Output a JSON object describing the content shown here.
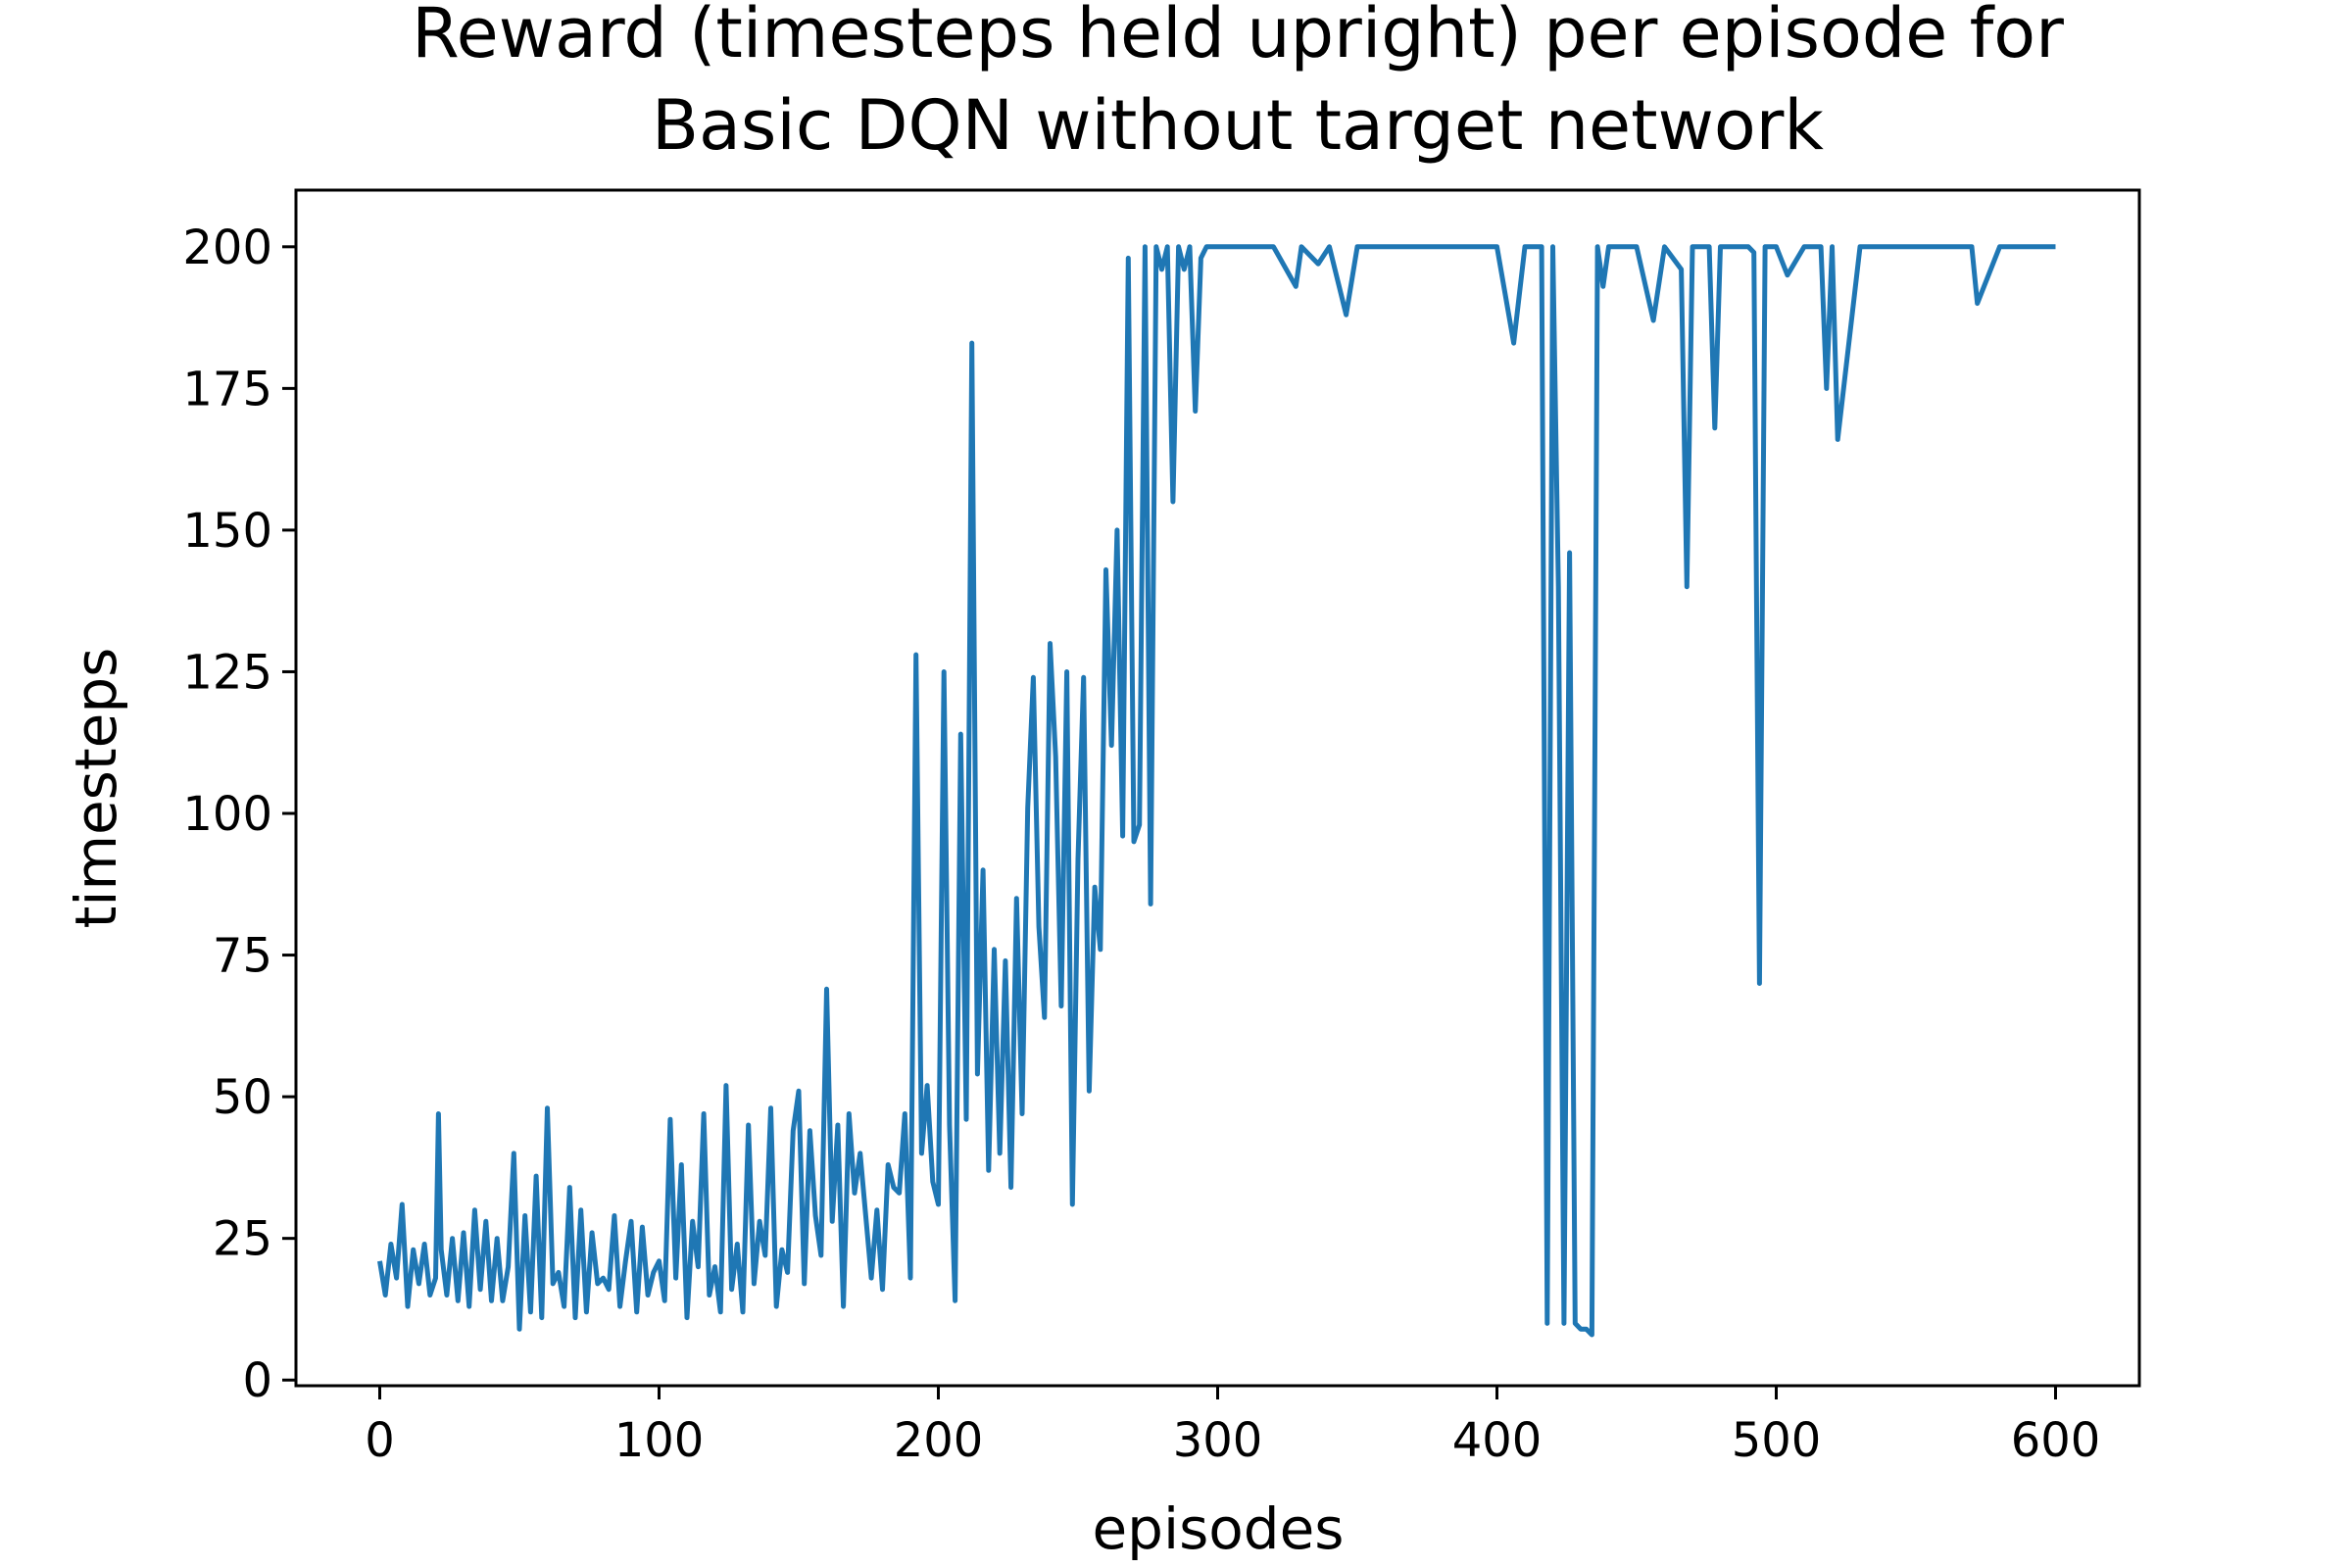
{
  "chart_data": {
    "type": "line",
    "title": [
      "Reward (timesteps held upright) per episode for",
      "Basic DQN without target network"
    ],
    "xlabel": "episodes",
    "ylabel": "timesteps",
    "xlim": [
      -30,
      630
    ],
    "ylim": [
      -1,
      210
    ],
    "xticks": [
      0,
      100,
      200,
      300,
      400,
      500,
      600
    ],
    "yticks": [
      0,
      25,
      50,
      75,
      100,
      125,
      150,
      175,
      200
    ],
    "grid": false,
    "legend": false,
    "colors": {
      "series": "#1f77b4"
    },
    "series": [
      {
        "x": [
          0,
          2,
          4,
          6,
          8,
          10,
          12,
          14,
          16,
          18,
          20,
          21,
          22,
          24,
          26,
          28,
          30,
          32,
          34,
          36,
          38,
          40,
          42,
          44,
          46,
          48,
          50,
          52,
          54,
          56,
          58,
          60,
          62,
          64,
          66,
          68,
          70,
          72,
          74,
          76,
          78,
          80,
          82,
          84,
          86,
          88,
          90,
          92,
          94,
          96,
          98,
          100,
          102,
          104,
          106,
          108,
          110,
          112,
          114,
          116,
          118,
          120,
          122,
          124,
          126,
          128,
          130,
          132,
          134,
          136,
          138,
          140,
          142,
          144,
          146,
          148,
          150,
          152,
          154,
          156,
          158,
          160,
          162,
          164,
          166,
          168,
          170,
          172,
          174,
          176,
          178,
          180,
          182,
          184,
          186,
          188,
          190,
          192,
          194,
          196,
          198,
          200,
          202,
          204,
          206,
          208,
          210,
          212,
          214,
          216,
          218,
          220,
          222,
          224,
          226,
          228,
          230,
          232,
          234,
          236,
          238,
          240,
          242,
          244,
          246,
          248,
          250,
          252,
          254,
          256,
          258,
          260,
          262,
          264,
          266,
          268,
          270,
          272,
          274,
          276,
          278,
          280,
          282,
          284,
          286,
          288,
          290,
          292,
          294,
          296,
          300,
          310,
          320,
          328,
          330,
          336,
          340,
          346,
          350,
          360,
          380,
          400,
          406,
          410,
          416,
          418,
          420,
          422,
          424,
          426,
          428,
          430,
          432,
          434,
          436,
          438,
          440,
          450,
          456,
          460,
          466,
          468,
          470,
          476,
          478,
          480,
          490,
          492,
          494,
          496,
          500,
          504,
          510,
          516,
          518,
          520,
          522,
          530,
          540,
          560,
          570,
          572,
          580,
          590,
          600
        ],
        "y": [
          21,
          15,
          24,
          18,
          31,
          13,
          23,
          17,
          24,
          15,
          18,
          47,
          23,
          15,
          25,
          14,
          26,
          13,
          30,
          16,
          28,
          14,
          25,
          14,
          20,
          40,
          9,
          29,
          12,
          36,
          11,
          48,
          17,
          19,
          13,
          34,
          11,
          30,
          12,
          26,
          17,
          18,
          16,
          29,
          13,
          21,
          28,
          12,
          27,
          15,
          19,
          21,
          14,
          46,
          18,
          38,
          11,
          28,
          20,
          47,
          15,
          20,
          12,
          52,
          16,
          24,
          12,
          45,
          17,
          28,
          22,
          48,
          13,
          23,
          19,
          44,
          51,
          17,
          44,
          29,
          22,
          69,
          28,
          45,
          13,
          47,
          33,
          40,
          29,
          18,
          30,
          16,
          38,
          34,
          33,
          47,
          18,
          128,
          40,
          52,
          35,
          31,
          125,
          45,
          14,
          114,
          46,
          183,
          54,
          90,
          37,
          76,
          40,
          74,
          34,
          85,
          47,
          101,
          124,
          80,
          64,
          130,
          110,
          66,
          125,
          31,
          92,
          124,
          51,
          87,
          76,
          143,
          112,
          150,
          96,
          198,
          95,
          98,
          200,
          84,
          200,
          196,
          200,
          155,
          200,
          196,
          200,
          171,
          198,
          200,
          200,
          200,
          200,
          193,
          200,
          197,
          200,
          188,
          200,
          200,
          200,
          200,
          183,
          200,
          200,
          10,
          200,
          140,
          10,
          146,
          10,
          9,
          9,
          8,
          200,
          193,
          200,
          200,
          187,
          200,
          196,
          140,
          200,
          200,
          168,
          200,
          200,
          199,
          70,
          200,
          200,
          195,
          200,
          200,
          175,
          200,
          166,
          200,
          200,
          200,
          200,
          190,
          200,
          200,
          200
        ]
      }
    ]
  }
}
